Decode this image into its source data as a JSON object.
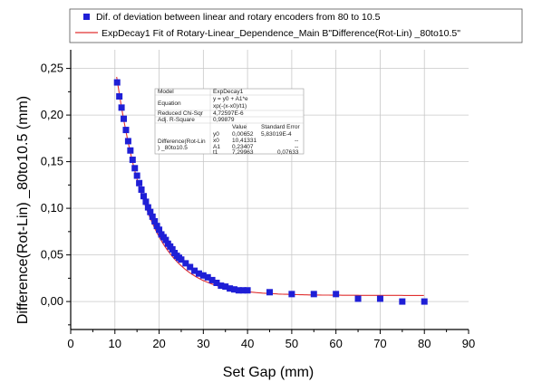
{
  "chart_data": {
    "type": "scatter",
    "xlabel": "Set Gap (mm)",
    "ylabel": "Difference(Rot-Lin) _80to10.5 (mm)",
    "xlim": [
      0,
      90
    ],
    "ylim": [
      -0.03,
      0.27
    ],
    "xticks": [
      "0",
      "10",
      "20",
      "30",
      "40",
      "50",
      "60",
      "70",
      "80",
      "90"
    ],
    "yticks": [
      "0,00",
      "0,05",
      "0,10",
      "0,15",
      "0,20",
      "0,25"
    ],
    "grid": true,
    "legend_placement": "top",
    "series": [
      {
        "name": "Dif. of deviation between linear and rotary encoders from 80 to 10.5",
        "marker": "square",
        "color": "#1f1fd6",
        "x": [
          10.5,
          11,
          11.5,
          12,
          12.5,
          13,
          13.5,
          14,
          14.5,
          15,
          15.5,
          16,
          16.5,
          17,
          17.5,
          18,
          18.5,
          19,
          19.5,
          20,
          20.5,
          21,
          21.5,
          22,
          22.5,
          23,
          23.5,
          24,
          24.5,
          25,
          26,
          27,
          28,
          29,
          30,
          31,
          32,
          33,
          34,
          35,
          36,
          37,
          38,
          39,
          40,
          45,
          50,
          55,
          60,
          65,
          70,
          75,
          80
        ],
        "y": [
          0.235,
          0.22,
          0.208,
          0.196,
          0.184,
          0.172,
          0.162,
          0.152,
          0.143,
          0.135,
          0.127,
          0.12,
          0.113,
          0.107,
          0.101,
          0.096,
          0.091,
          0.086,
          0.081,
          0.077,
          0.072,
          0.069,
          0.066,
          0.062,
          0.059,
          0.056,
          0.052,
          0.049,
          0.047,
          0.045,
          0.041,
          0.037,
          0.033,
          0.03,
          0.028,
          0.026,
          0.023,
          0.02,
          0.017,
          0.016,
          0.014,
          0.013,
          0.012,
          0.012,
          0.012,
          0.01,
          0.008,
          0.008,
          0.008,
          0.003,
          0.003,
          0.0,
          0.0
        ]
      },
      {
        "name": "ExpDecay1 Fit of Rotary-Linear_Dependence_Main B\"Difference(Rot-Lin) _80to10.5\"",
        "type": "line",
        "color": "#e03030",
        "fit": {
          "y0": 0.00652,
          "x0": 10.41331,
          "A1": 0.23407,
          "t1": 7.29963
        },
        "x_range": [
          10.4,
          80
        ]
      }
    ],
    "stats_table": {
      "model_label": "Model",
      "model_value": "ExpDecay1",
      "equation_label": "Equation",
      "equation_line1": "y = y0 + A1*e",
      "equation_line2": "xp(-(x-x0)/t1)",
      "chisq_label": "Reduced Chi-Sqr",
      "chisq_value": "4,72597E-6",
      "r2_label": "Adj. R-Square",
      "r2_value": "0,99879",
      "col_value": "Value",
      "col_stderr": "Standard Error",
      "row_group_line1": "Difference(Rot-Lin",
      "row_group_line2": ") _80to10.5",
      "params": [
        {
          "name": "y0",
          "value": "0,00652",
          "stderr": "5,83019E-4"
        },
        {
          "name": "x0",
          "value": "10,41331",
          "stderr": "--"
        },
        {
          "name": "A1",
          "value": "0,23407",
          "stderr": "--"
        },
        {
          "name": "t1",
          "value": "7,29963",
          "stderr": "0,07633"
        }
      ]
    }
  }
}
